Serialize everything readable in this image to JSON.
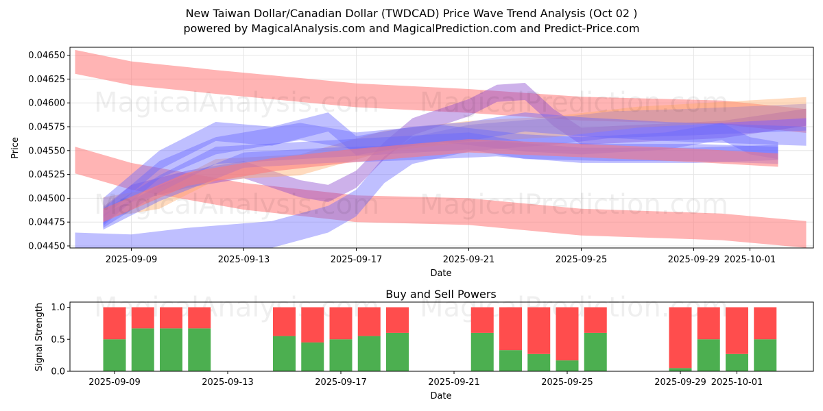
{
  "header": {
    "title_line1": "New Taiwan Dollar/Canadian Dollar (TWDCAD) Price Wave Trend Analysis (Oct 02 )",
    "title_line2": "powered by MagicalAnalysis.com and MagicalPrediction.com and Predict-Price.com"
  },
  "watermarks": {
    "left": "MagicalAnalysis.com",
    "right": "MagicalPrediction.com"
  },
  "colors": {
    "red_band": "#ff7777",
    "blue_band": "#6666ff",
    "purple_band": "#8844cc",
    "orange_band": "#ffaa66",
    "buy": "#4caf50",
    "sell": "#ff4d4d",
    "grid": "#e6e6e6"
  },
  "chart_data": [
    {
      "type": "area",
      "title": "",
      "xlabel": "Date",
      "ylabel": "Price",
      "ylim": [
        0.04447,
        0.04657
      ],
      "grid": true,
      "x_ticks": [
        "2025-09-09",
        "2025-09-13",
        "2025-09-17",
        "2025-09-21",
        "2025-09-25",
        "2025-09-29",
        "2025-10-01"
      ],
      "y_ticks": [
        "0.04450",
        "0.04475",
        "0.04500",
        "0.04525",
        "0.04550",
        "0.04575",
        "0.04600",
        "0.04625",
        "0.04650"
      ],
      "series": [
        {
          "name": "upper-red-band",
          "color": "red",
          "width": 0.00025,
          "points": [
            [
              "2025-09-07",
              0.04643
            ],
            [
              "2025-09-09",
              0.04631
            ],
            [
              "2025-09-12",
              0.04622
            ],
            [
              "2025-09-17",
              0.04608
            ],
            [
              "2025-09-21",
              0.04602
            ],
            [
              "2025-09-25",
              0.04594
            ],
            [
              "2025-09-30",
              0.0459
            ],
            [
              "2025-10-03",
              0.04581
            ]
          ]
        },
        {
          "name": "lower-red-band",
          "color": "red",
          "width": 0.00028,
          "points": [
            [
              "2025-09-07",
              0.0454
            ],
            [
              "2025-09-09",
              0.04523
            ],
            [
              "2025-09-13",
              0.04502
            ],
            [
              "2025-09-17",
              0.04489
            ],
            [
              "2025-09-21",
              0.04486
            ],
            [
              "2025-09-25",
              0.04475
            ],
            [
              "2025-09-30",
              0.0447
            ],
            [
              "2025-10-03",
              0.04462
            ]
          ]
        },
        {
          "name": "rising-blue-band",
          "color": "blue",
          "width": 0.00028,
          "points": [
            [
              "2025-09-07",
              0.0445
            ],
            [
              "2025-09-09",
              0.04448
            ],
            [
              "2025-09-11",
              0.04455
            ],
            [
              "2025-09-14",
              0.04462
            ],
            [
              "2025-09-16",
              0.04478
            ],
            [
              "2025-09-17",
              0.04495
            ],
            [
              "2025-09-18",
              0.0453
            ],
            [
              "2025-09-19",
              0.0455
            ],
            [
              "2025-09-21",
              0.04563
            ],
            [
              "2025-09-23",
              0.04568
            ],
            [
              "2025-09-24",
              0.0457
            ],
            [
              "2025-09-26",
              0.04577
            ],
            [
              "2025-09-29",
              0.0458
            ],
            [
              "2025-10-03",
              0.04585
            ]
          ]
        },
        {
          "name": "purple-wave",
          "color": "purple",
          "width": 0.00018,
          "points": [
            [
              "2025-09-08",
              0.04482
            ],
            [
              "2025-09-09",
              0.04505
            ],
            [
              "2025-09-11",
              0.0452
            ],
            [
              "2025-09-13",
              0.0453
            ],
            [
              "2025-09-15",
              0.0451
            ],
            [
              "2025-09-16",
              0.04505
            ],
            [
              "2025-09-17",
              0.0452
            ],
            [
              "2025-09-18",
              0.0455
            ],
            [
              "2025-09-19",
              0.04575
            ],
            [
              "2025-09-21",
              0.04595
            ],
            [
              "2025-09-22",
              0.0461
            ],
            [
              "2025-09-23",
              0.04612
            ],
            [
              "2025-09-24",
              0.04585
            ],
            [
              "2025-09-25",
              0.04565
            ],
            [
              "2025-09-27",
              0.04568
            ],
            [
              "2025-09-30",
              0.04572
            ],
            [
              "2025-10-03",
              0.04585
            ]
          ]
        },
        {
          "name": "orange-band",
          "color": "orange",
          "width": 0.00022,
          "points": [
            [
              "2025-09-08",
              0.0449
            ],
            [
              "2025-09-10",
              0.045
            ],
            [
              "2025-09-12",
              0.0453
            ],
            [
              "2025-09-15",
              0.04535
            ],
            [
              "2025-09-18",
              0.0456
            ],
            [
              "2025-09-21",
              0.0457
            ],
            [
              "2025-09-24",
              0.04575
            ],
            [
              "2025-09-27",
              0.04585
            ],
            [
              "2025-10-03",
              0.04595
            ]
          ]
        },
        {
          "name": "blue-band-1",
          "color": "blue",
          "width": 0.0002,
          "points": [
            [
              "2025-09-08",
              0.0449
            ],
            [
              "2025-09-10",
              0.0454
            ],
            [
              "2025-09-12",
              0.0457
            ],
            [
              "2025-09-14",
              0.04565
            ],
            [
              "2025-09-16",
              0.0458
            ],
            [
              "2025-09-17",
              0.04555
            ],
            [
              "2025-09-19",
              0.04565
            ],
            [
              "2025-09-21",
              0.0457
            ],
            [
              "2025-09-23",
              0.0458
            ],
            [
              "2025-09-25",
              0.04575
            ],
            [
              "2025-09-28",
              0.0457
            ],
            [
              "2025-10-03",
              0.04565
            ]
          ]
        },
        {
          "name": "blue-band-2",
          "color": "blue",
          "width": 0.00018,
          "points": [
            [
              "2025-09-08",
              0.0448
            ],
            [
              "2025-09-10",
              0.0453
            ],
            [
              "2025-09-12",
              0.04555
            ],
            [
              "2025-09-15",
              0.0457
            ],
            [
              "2025-09-17",
              0.0456
            ],
            [
              "2025-09-20",
              0.04568
            ],
            [
              "2025-09-23",
              0.04558
            ],
            [
              "2025-09-25",
              0.04555
            ],
            [
              "2025-09-28",
              0.0456
            ],
            [
              "2025-09-30",
              0.0457
            ],
            [
              "2025-10-01",
              0.04555
            ],
            [
              "2025-10-02",
              0.0455
            ]
          ]
        },
        {
          "name": "blue-band-3",
          "color": "blue",
          "width": 0.00018,
          "points": [
            [
              "2025-09-08",
              0.04478
            ],
            [
              "2025-09-10",
              0.04515
            ],
            [
              "2025-09-12",
              0.04545
            ],
            [
              "2025-09-15",
              0.0455
            ],
            [
              "2025-09-18",
              0.04555
            ],
            [
              "2025-09-21",
              0.0456
            ],
            [
              "2025-09-23",
              0.0455
            ],
            [
              "2025-09-26",
              0.04548
            ],
            [
              "2025-09-29",
              0.04548
            ],
            [
              "2025-10-02",
              0.04545
            ]
          ]
        },
        {
          "name": "blue-band-4",
          "color": "blue",
          "width": 0.00016,
          "points": [
            [
              "2025-09-08",
              0.04475
            ],
            [
              "2025-09-10",
              0.04505
            ],
            [
              "2025-09-13",
              0.0454
            ],
            [
              "2025-09-16",
              0.04545
            ],
            [
              "2025-09-19",
              0.04548
            ],
            [
              "2025-09-22",
              0.04552
            ],
            [
              "2025-09-25",
              0.04545
            ],
            [
              "2025-09-29",
              0.04545
            ],
            [
              "2025-10-02",
              0.04548
            ]
          ]
        },
        {
          "name": "pink-band",
          "color": "red",
          "width": 0.00014,
          "points": [
            [
              "2025-09-08",
              0.04482
            ],
            [
              "2025-09-11",
              0.0452
            ],
            [
              "2025-09-14",
              0.04535
            ],
            [
              "2025-09-17",
              0.04545
            ],
            [
              "2025-09-21",
              0.04555
            ],
            [
              "2025-09-25",
              0.0455
            ],
            [
              "2025-09-29",
              0.04545
            ],
            [
              "2025-10-02",
              0.0454
            ]
          ]
        }
      ]
    },
    {
      "type": "bar",
      "title": "Buy and Sell Powers",
      "xlabel": "Date",
      "ylabel": "Signal Strength",
      "ylim": [
        0,
        1.05
      ],
      "x_ticks": [
        "2025-09-09",
        "2025-09-13",
        "2025-09-17",
        "2025-09-21",
        "2025-09-25",
        "2025-09-29",
        "2025-10-01"
      ],
      "y_ticks": [
        "0.0",
        "0.5",
        "1.0"
      ],
      "categories": [
        "2025-09-09",
        "2025-09-10",
        "2025-09-11",
        "2025-09-12",
        "2025-09-15",
        "2025-09-16",
        "2025-09-17",
        "2025-09-18",
        "2025-09-19",
        "2025-09-22",
        "2025-09-23",
        "2025-09-24",
        "2025-09-25",
        "2025-09-26",
        "2025-09-29",
        "2025-09-30",
        "2025-10-01",
        "2025-10-02"
      ],
      "series": [
        {
          "name": "Buy",
          "values": [
            0.5,
            0.67,
            0.67,
            0.67,
            0.55,
            0.45,
            0.5,
            0.55,
            0.6,
            0.6,
            0.33,
            0.27,
            0.17,
            0.6,
            0.05,
            0.5,
            0.27,
            0.5
          ]
        },
        {
          "name": "Sell",
          "values": [
            0.5,
            0.33,
            0.33,
            0.33,
            0.45,
            0.55,
            0.5,
            0.45,
            0.4,
            0.4,
            0.67,
            0.73,
            0.83,
            0.4,
            0.95,
            0.5,
            0.73,
            0.5
          ]
        }
      ]
    }
  ]
}
